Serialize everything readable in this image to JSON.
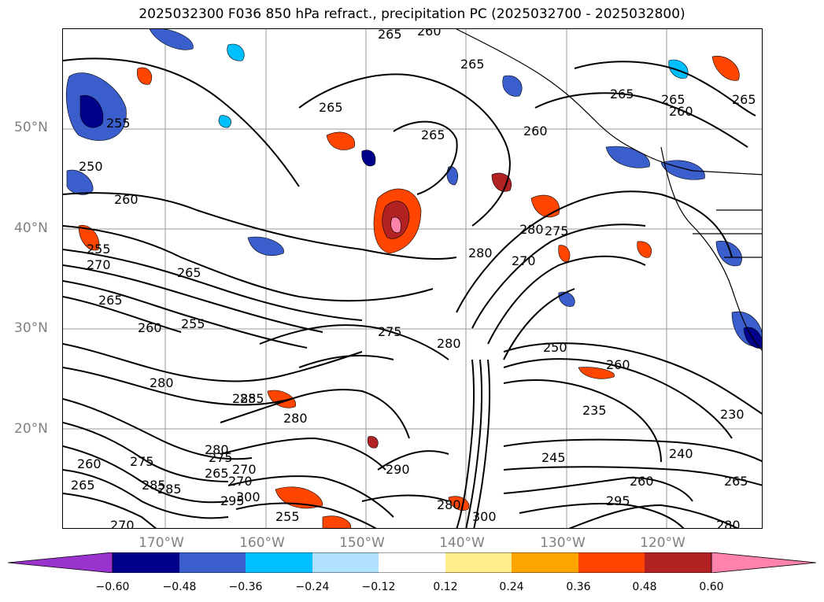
{
  "title": "2025032300 F036 850 hPa refract., precipitation PC (2025032700 - 2025032800)",
  "lat_labels": [
    "50°N",
    "40°N",
    "30°N",
    "20°N"
  ],
  "lon_labels": [
    "170°W",
    "160°W",
    "150°W",
    "140°W",
    "130°W",
    "120°W"
  ],
  "colorbar": {
    "colors": [
      "#9a32cd",
      "#00008b",
      "#3a5fcd",
      "#00bfff",
      "#b0e2ff",
      "#ffffff",
      "#ffec8b",
      "#ffa500",
      "#ff4500",
      "#b22222",
      "#ff82ab"
    ],
    "tick_labels": [
      "−0.60",
      "−0.48",
      "−0.36",
      "−0.24",
      "−0.12",
      "0.12",
      "0.24",
      "0.36",
      "0.48",
      "0.60"
    ]
  },
  "contour_labels": [
    "265",
    "260",
    "265",
    "265",
    "265",
    "255",
    "250",
    "260",
    "265",
    "260",
    "265",
    "255",
    "265",
    "270",
    "255",
    "260",
    "265",
    "280",
    "270",
    "275",
    "280",
    "275",
    "280",
    "290",
    "245",
    "235",
    "230",
    "240",
    "265",
    "280",
    "260",
    "295",
    "300",
    "280",
    "270",
    "285",
    "260",
    "285",
    "265",
    "270",
    "280",
    "295",
    "300",
    "280",
    "275",
    "275",
    "285",
    "270",
    "265",
    "280",
    "250",
    "260",
    "285",
    "255",
    "260",
    "265"
  ]
}
